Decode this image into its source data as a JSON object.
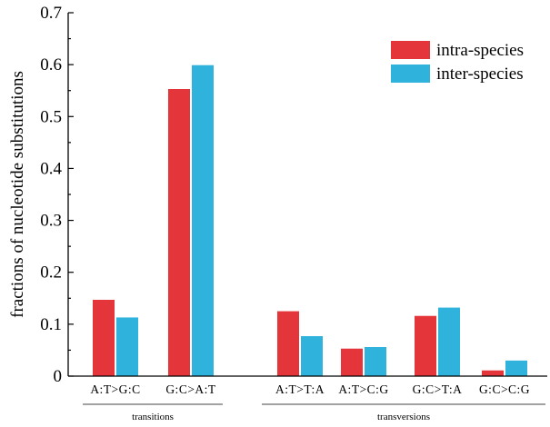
{
  "chart_data": {
    "type": "bar",
    "ylabel": "fractions of nucleotide substitutions",
    "xlabel": "",
    "ylim": [
      0,
      0.7
    ],
    "yticks": [
      "0",
      "0.1",
      "0.2",
      "0.3",
      "0.4",
      "0.5",
      "0.6",
      "0.7"
    ],
    "categories": [
      "A:T>G:C",
      "G:C>A:T",
      "A:T>T:A",
      "A:T>C:G",
      "G:C>T:A",
      "G:C>C:G"
    ],
    "series": [
      {
        "name": "intra-species",
        "color": "#e4363a",
        "values": [
          0.147,
          0.553,
          0.125,
          0.053,
          0.116,
          0.011
        ]
      },
      {
        "name": "inter-species",
        "color": "#2fb3dd",
        "values": [
          0.113,
          0.599,
          0.077,
          0.056,
          0.132,
          0.03
        ]
      }
    ],
    "groups": [
      {
        "label": "transitions",
        "categories": [
          "A:T>G:C",
          "G:C>A:T"
        ]
      },
      {
        "label": "transversions",
        "categories": [
          "A:T>T:A",
          "A:T>C:G",
          "G:C>T:A",
          "G:C>C:G"
        ]
      }
    ],
    "legend_position": "top-right",
    "grid": false
  }
}
